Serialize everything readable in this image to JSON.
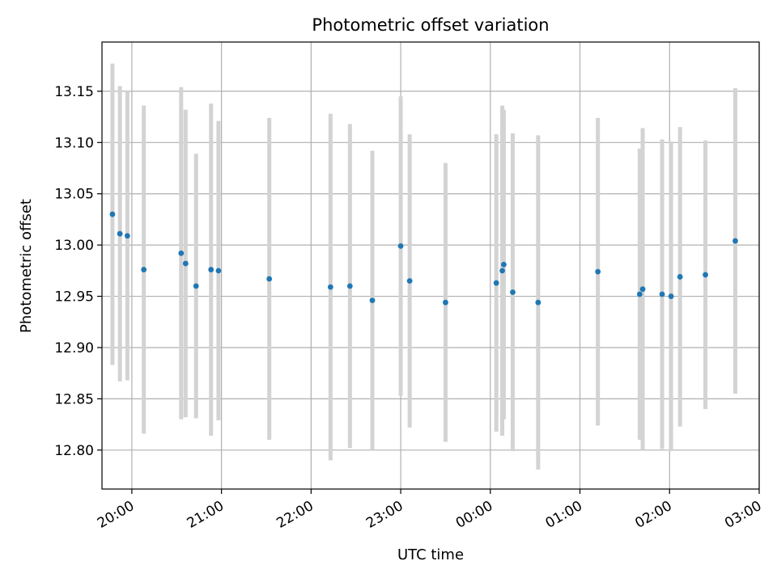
{
  "chart_data": {
    "type": "scatter",
    "title": "Photometric offset variation",
    "xlabel": "UTC time",
    "ylabel": "Photometric offset",
    "grid": true,
    "x_ticks": [
      "20:00",
      "21:00",
      "22:00",
      "23:00",
      "00:00",
      "01:00",
      "02:00",
      "03:00"
    ],
    "y_ticks": [
      "12.80",
      "12.85",
      "12.90",
      "12.95",
      "13.00",
      "13.05",
      "13.10",
      "13.15"
    ],
    "xlim": [
      "19:40",
      "03:00"
    ],
    "ylim": [
      12.762,
      13.198
    ],
    "colors": {
      "marker": "#1f77b4",
      "errorbar": "#d3d3d3",
      "grid": "#b0b0b0"
    },
    "series": [
      {
        "points": [
          {
            "x": "19:47",
            "y": 13.03,
            "err": 0.147
          },
          {
            "x": "19:52",
            "y": 13.011,
            "err": 0.144
          },
          {
            "x": "19:57",
            "y": 13.009,
            "err": 0.141
          },
          {
            "x": "20:08",
            "y": 12.976,
            "err": 0.16
          },
          {
            "x": "20:33",
            "y": 12.992,
            "err": 0.162
          },
          {
            "x": "20:36",
            "y": 12.982,
            "err": 0.15
          },
          {
            "x": "20:43",
            "y": 12.96,
            "err": 0.129
          },
          {
            "x": "20:53",
            "y": 12.976,
            "err": 0.162
          },
          {
            "x": "20:58",
            "y": 12.975,
            "err": 0.146
          },
          {
            "x": "21:32",
            "y": 12.967,
            "err": 0.157
          },
          {
            "x": "22:13",
            "y": 12.959,
            "err": 0.169
          },
          {
            "x": "22:26",
            "y": 12.96,
            "err": 0.158
          },
          {
            "x": "22:41",
            "y": 12.946,
            "err": 0.146
          },
          {
            "x": "23:00",
            "y": 12.999,
            "err": 0.146
          },
          {
            "x": "23:06",
            "y": 12.965,
            "err": 0.143
          },
          {
            "x": "23:30",
            "y": 12.944,
            "err": 0.136
          },
          {
            "x": "00:04",
            "y": 12.963,
            "err": 0.145
          },
          {
            "x": "00:08",
            "y": 12.975,
            "err": 0.161
          },
          {
            "x": "00:09",
            "y": 12.981,
            "err": 0.151
          },
          {
            "x": "00:15",
            "y": 12.954,
            "err": 0.155
          },
          {
            "x": "00:32",
            "y": 12.944,
            "err": 0.163
          },
          {
            "x": "01:12",
            "y": 12.974,
            "err": 0.15
          },
          {
            "x": "01:40",
            "y": 12.952,
            "err": 0.142
          },
          {
            "x": "01:42",
            "y": 12.957,
            "err": 0.157
          },
          {
            "x": "01:55",
            "y": 12.952,
            "err": 0.151
          },
          {
            "x": "02:01",
            "y": 12.95,
            "err": 0.151
          },
          {
            "x": "02:07",
            "y": 12.969,
            "err": 0.146
          },
          {
            "x": "02:24",
            "y": 12.971,
            "err": 0.131
          },
          {
            "x": "02:44",
            "y": 13.004,
            "err": 0.149
          }
        ]
      }
    ]
  }
}
